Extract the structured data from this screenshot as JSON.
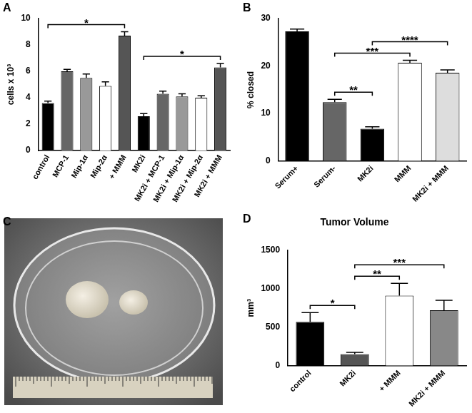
{
  "chart_data": [
    {
      "panel": "A",
      "type": "bar",
      "ylabel": "cells x 10³",
      "categories": [
        "control",
        "MCP-1",
        "Mip-1α",
        "Mip-2α",
        "+ MMM",
        "MK2i",
        "MK2i + MCP-1",
        "MK2i + Mip-1α",
        "MK2i + Mip-2α",
        "MK2i + MMM"
      ],
      "values": [
        3.6,
        6.0,
        5.5,
        4.9,
        8.7,
        2.6,
        4.3,
        4.1,
        4.0,
        6.3
      ],
      "errors": [
        0.15,
        0.15,
        0.3,
        0.3,
        0.3,
        0.2,
        0.2,
        0.2,
        0.15,
        0.3
      ],
      "colors": [
        "#000000",
        "#666666",
        "#999999",
        "#ffffff",
        "#555555",
        "#000000",
        "#666666",
        "#999999",
        "#ffffff",
        "#555555"
      ],
      "ylim": [
        0,
        10
      ],
      "yticks": [
        0,
        2,
        4,
        6,
        8,
        10
      ],
      "grid": false,
      "annotations": [
        {
          "from": "control",
          "to": "+ MMM",
          "text": "*"
        },
        {
          "from": "MK2i",
          "to": "MK2i + MMM",
          "text": "*"
        }
      ]
    },
    {
      "panel": "B",
      "type": "bar",
      "ylabel": "% closed",
      "categories": [
        "Serum+",
        "Serum-",
        "MK2i",
        "MMM",
        "MK2i + MMM"
      ],
      "values": [
        27.3,
        12.4,
        6.8,
        20.7,
        18.6
      ],
      "errors": [
        0.5,
        0.6,
        0.4,
        0.5,
        0.6
      ],
      "colors": [
        "#000000",
        "#666666",
        "#000000",
        "#ffffff",
        "#dddddd"
      ],
      "ylim": [
        0,
        30
      ],
      "yticks": [
        0,
        10,
        20,
        30
      ],
      "grid": false,
      "annotations": [
        {
          "from": "Serum-",
          "to": "MK2i",
          "text": "**"
        },
        {
          "from": "Serum-",
          "to": "MMM",
          "text": "***"
        },
        {
          "from": "MK2i",
          "to": "MK2i + MMM",
          "text": "****"
        }
      ]
    },
    {
      "panel": "D",
      "type": "bar",
      "title": "Tumor Volume",
      "ylabel": "mm³",
      "categories": [
        "control",
        "MK2i",
        "+ MMM",
        "MK2i + MMM"
      ],
      "values": [
        570,
        150,
        910,
        720
      ],
      "errors": [
        120,
        25,
        160,
        130
      ],
      "colors": [
        "#000000",
        "#555555",
        "#ffffff",
        "#888888"
      ],
      "ylim": [
        0,
        1500
      ],
      "yticks": [
        0,
        500,
        1000,
        1500
      ],
      "grid": false,
      "annotations": [
        {
          "from": "control",
          "to": "MK2i",
          "text": "*"
        },
        {
          "from": "MK2i",
          "to": "+ MMM",
          "text": "**"
        },
        {
          "from": "MK2i",
          "to": "MK2i + MMM",
          "text": "***"
        }
      ]
    }
  ],
  "photo": {
    "panel": "C"
  }
}
